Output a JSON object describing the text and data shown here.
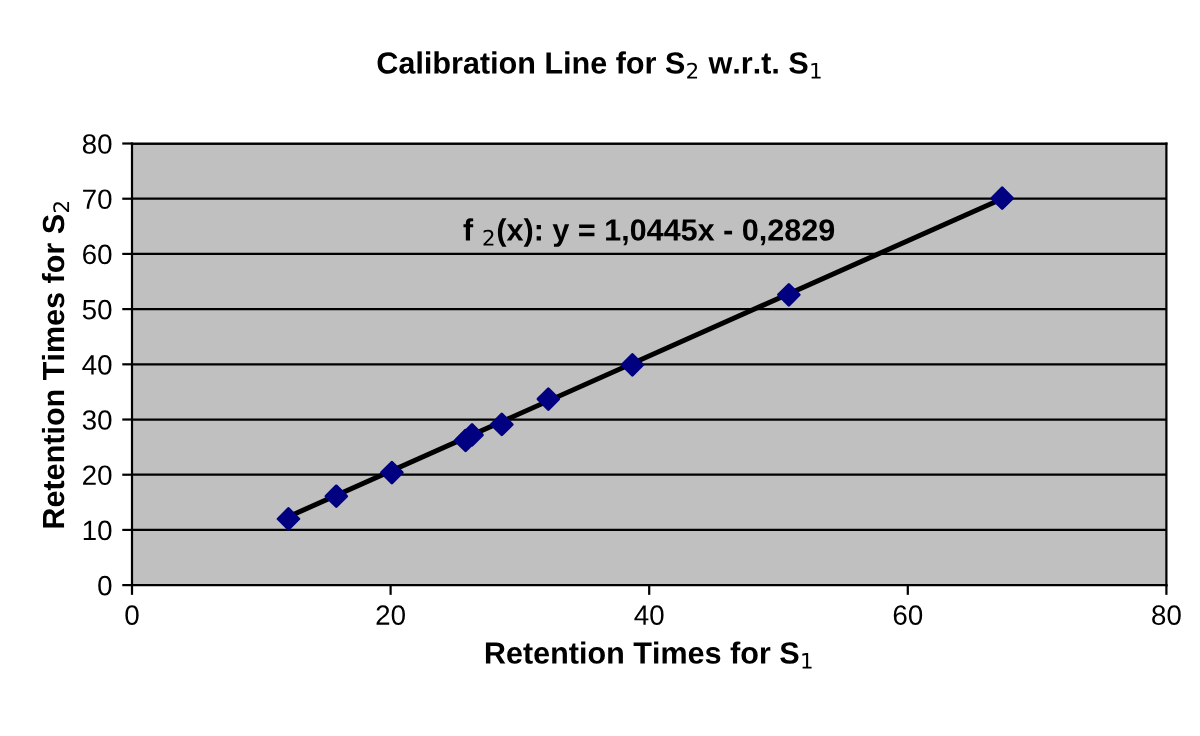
{
  "chart_data": {
    "type": "scatter",
    "title": "Calibration Line for S$_{2}$ w.r.t. S$_{1}$",
    "xlabel": "Retention Times for S$_{1}$",
    "ylabel": "Retention Times for S$_{2}$",
    "annotations": [
      "f $_{2}$(x): y = 1,0445x - 0,2829"
    ],
    "series": [
      {
        "color": "#000080",
        "marker": "diamond",
        "x": [
          12.1,
          15.8,
          20.1,
          25.8,
          26.3,
          28.6,
          32.2,
          38.7,
          50.8,
          67.3
        ],
        "values": [
          12.0,
          16.1,
          20.4,
          26.2,
          27.2,
          29.1,
          33.7,
          39.9,
          52.6,
          70.1
        ]
      },
      {
        "type": "line",
        "color": "#000000",
        "marker": "none",
        "x": [
          12.1,
          67.3
        ],
        "values": [
          12.4,
          70.0
        ]
      }
    ],
    "xlim": [
      0,
      80
    ],
    "xticks": [
      0,
      20,
      40,
      60,
      80
    ],
    "ylim": [
      0,
      80
    ],
    "yticks": [
      0,
      10,
      20,
      30,
      40,
      50,
      60,
      70,
      80
    ],
    "grid": "y"
  }
}
